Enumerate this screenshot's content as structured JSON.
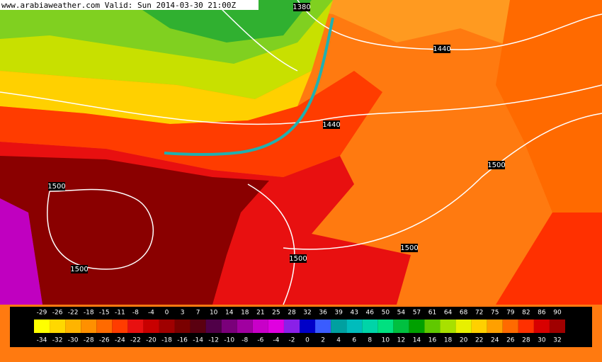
{
  "header": {
    "text": "www.arabiaweather.com Valid: Sun 2014-03-30 21:00Z"
  },
  "contour_labels": [
    "1380",
    "1440",
    "1440",
    "1500",
    "1500",
    "1500",
    "1500",
    "1500"
  ],
  "colorbar": {
    "top_labels": [
      -29,
      -26,
      -22,
      -18,
      -15,
      -11,
      -8,
      -4,
      0,
      3,
      7,
      10,
      14,
      18,
      21,
      25,
      28,
      32,
      36,
      39,
      43,
      46,
      50,
      54,
      57,
      61,
      64,
      68,
      72,
      75,
      79,
      82,
      86,
      90
    ],
    "bottom_labels": [
      -34,
      -32,
      -30,
      -28,
      -26,
      -24,
      -22,
      -20,
      -18,
      -16,
      -14,
      -12,
      -10,
      -8,
      -6,
      -4,
      -2,
      0,
      2,
      4,
      6,
      8,
      10,
      12,
      14,
      16,
      18,
      20,
      22,
      24,
      26,
      28,
      30,
      32
    ],
    "colors": [
      "#ffff00",
      "#ffd800",
      "#ffb400",
      "#ff9000",
      "#ff6a00",
      "#ff3c00",
      "#e81010",
      "#c80000",
      "#a00000",
      "#7a0000",
      "#5a0010",
      "#500048",
      "#7a007a",
      "#a000a0",
      "#c800c8",
      "#e000e0",
      "#8a20e8",
      "#0000c8",
      "#3a5cff",
      "#00a0a0",
      "#00bcbc",
      "#00d4a8",
      "#00e080",
      "#00c040",
      "#00a000",
      "#60c800",
      "#a8e000",
      "#e8f000",
      "#ffd000",
      "#ffa000",
      "#ff6a00",
      "#ff3000",
      "#d80000",
      "#a00000"
    ]
  }
}
